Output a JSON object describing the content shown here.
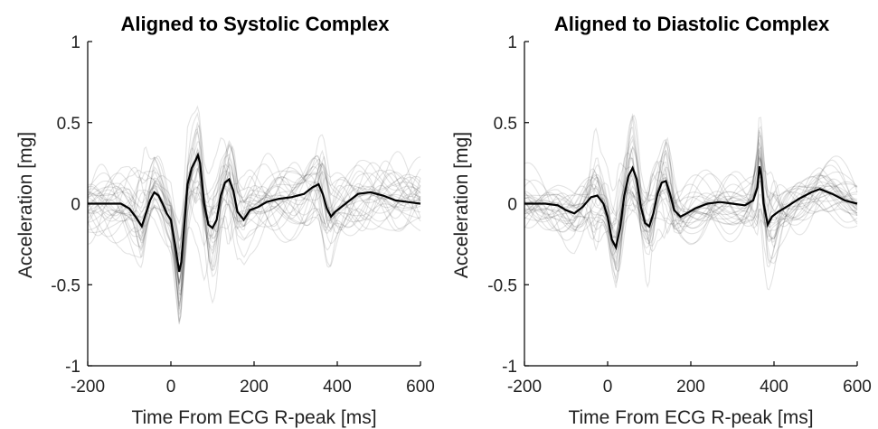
{
  "chart_data": [
    {
      "type": "line",
      "title": "Aligned to Systolic Complex",
      "xlabel": "Time From ECG R-peak [ms]",
      "ylabel": "Acceleration [mg]",
      "xlim": [
        -200,
        600
      ],
      "ylim": [
        -1,
        1
      ],
      "xticks": [
        -200,
        0,
        200,
        400,
        600
      ],
      "yticks": [
        -1,
        -0.5,
        0,
        0.5,
        1
      ],
      "xtick_labels": [
        "-200",
        "0",
        "200",
        "400",
        "600"
      ],
      "ytick_labels": [
        "-1",
        "-0.5",
        "0",
        "0.5",
        "1"
      ],
      "grid": false,
      "legend": "none",
      "mean_color": "#000000",
      "trial_color": "#b0b0b0",
      "trial_count": 30,
      "mean_series": {
        "x": [
          -200,
          -150,
          -120,
          -100,
          -85,
          -70,
          -60,
          -50,
          -40,
          -30,
          -20,
          -10,
          0,
          10,
          20,
          25,
          30,
          40,
          50,
          60,
          65,
          70,
          80,
          90,
          100,
          110,
          120,
          130,
          140,
          150,
          160,
          175,
          190,
          210,
          230,
          260,
          290,
          320,
          340,
          355,
          365,
          375,
          385,
          395,
          410,
          430,
          450,
          480,
          510,
          540,
          570,
          600
        ],
        "y": [
          0,
          0.0,
          0.0,
          -0.03,
          -0.08,
          -0.14,
          -0.06,
          0.02,
          0.07,
          0.05,
          0.0,
          -0.06,
          -0.1,
          -0.25,
          -0.42,
          -0.36,
          -0.2,
          0.12,
          0.22,
          0.27,
          0.3,
          0.25,
          0.0,
          -0.13,
          -0.15,
          -0.1,
          0.05,
          0.13,
          0.15,
          0.08,
          -0.05,
          -0.1,
          -0.04,
          -0.02,
          0.01,
          0.03,
          0.04,
          0.06,
          0.1,
          0.12,
          0.06,
          -0.03,
          -0.08,
          -0.05,
          -0.02,
          0.02,
          0.06,
          0.07,
          0.05,
          0.02,
          0.01,
          0
        ]
      },
      "spike_regions_ms": [
        -70,
        25,
        65,
        100,
        145,
        370
      ]
    },
    {
      "type": "line",
      "title": "Aligned to Diastolic Complex",
      "xlabel": "Time From ECG R-peak [ms]",
      "ylabel": "Acceleration [mg]",
      "xlim": [
        -200,
        600
      ],
      "ylim": [
        -1,
        1
      ],
      "xticks": [
        -200,
        0,
        200,
        400,
        600
      ],
      "yticks": [
        -1,
        -0.5,
        0,
        0.5,
        1
      ],
      "xtick_labels": [
        "-200",
        "0",
        "200",
        "400",
        "600"
      ],
      "ytick_labels": [
        "-1",
        "-0.5",
        "0",
        "0.5",
        "1"
      ],
      "grid": false,
      "legend": "none",
      "mean_color": "#000000",
      "trial_color": "#b0b0b0",
      "trial_count": 30,
      "mean_series": {
        "x": [
          -200,
          -150,
          -120,
          -100,
          -80,
          -60,
          -40,
          -25,
          -10,
          0,
          10,
          20,
          30,
          40,
          50,
          60,
          70,
          80,
          90,
          100,
          110,
          120,
          130,
          140,
          150,
          160,
          175,
          190,
          210,
          240,
          270,
          300,
          330,
          350,
          360,
          365,
          370,
          375,
          385,
          395,
          410,
          430,
          460,
          490,
          510,
          540,
          570,
          600
        ],
        "y": [
          0,
          0.0,
          -0.01,
          -0.04,
          -0.06,
          -0.02,
          0.04,
          0.05,
          0.0,
          -0.08,
          -0.22,
          -0.27,
          -0.15,
          0.05,
          0.17,
          0.22,
          0.15,
          -0.02,
          -0.12,
          -0.14,
          -0.06,
          0.06,
          0.13,
          0.14,
          0.06,
          -0.04,
          -0.08,
          -0.06,
          -0.03,
          0.0,
          0.01,
          0.0,
          -0.01,
          0.02,
          0.1,
          0.23,
          0.16,
          0.0,
          -0.13,
          -0.08,
          -0.05,
          -0.02,
          0.03,
          0.07,
          0.09,
          0.06,
          0.02,
          0
        ]
      },
      "spike_regions_ms": [
        -30,
        25,
        60,
        100,
        140,
        365,
        395
      ]
    }
  ]
}
